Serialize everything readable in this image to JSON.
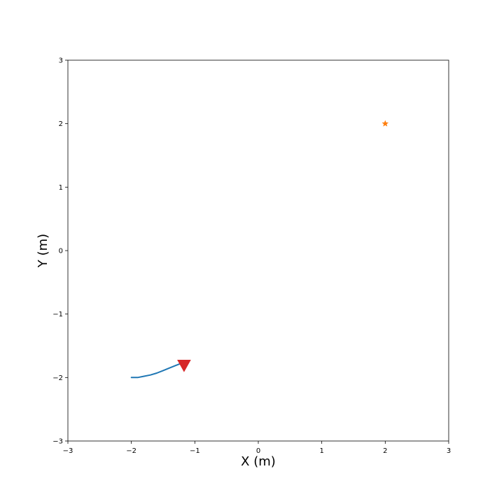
{
  "chart_data": {
    "type": "line",
    "xlabel": "X (m)",
    "ylabel": "Y (m)",
    "xlim": [
      -3,
      3
    ],
    "ylim": [
      -3,
      3
    ],
    "xticks": [
      -3,
      -2,
      -1,
      0,
      1,
      2,
      3
    ],
    "yticks": [
      -3,
      -2,
      -1,
      0,
      1,
      2,
      3
    ],
    "xtick_labels": [
      "−3",
      "−2",
      "−1",
      "0",
      "1",
      "2",
      "3"
    ],
    "ytick_labels": [
      "−3",
      "−2",
      "−1",
      "0",
      "1",
      "2",
      "3"
    ],
    "grid": false,
    "series": [
      {
        "kind": "line",
        "color": "#1f77b4",
        "x": [
          -2.0,
          -1.9,
          -1.8,
          -1.7,
          -1.6,
          -1.5,
          -1.4,
          -1.3,
          -1.2
        ],
        "y": [
          -2.0,
          -2.0,
          -1.98,
          -1.96,
          -1.93,
          -1.89,
          -1.85,
          -1.81,
          -1.77
        ]
      },
      {
        "kind": "marker",
        "marker": "triangle-down",
        "color": "#d62728",
        "x": [
          -1.17
        ],
        "y": [
          -1.8
        ]
      },
      {
        "kind": "marker",
        "marker": "star",
        "color": "#ff7f0e",
        "x": [
          2.0
        ],
        "y": [
          2.0
        ]
      }
    ]
  }
}
